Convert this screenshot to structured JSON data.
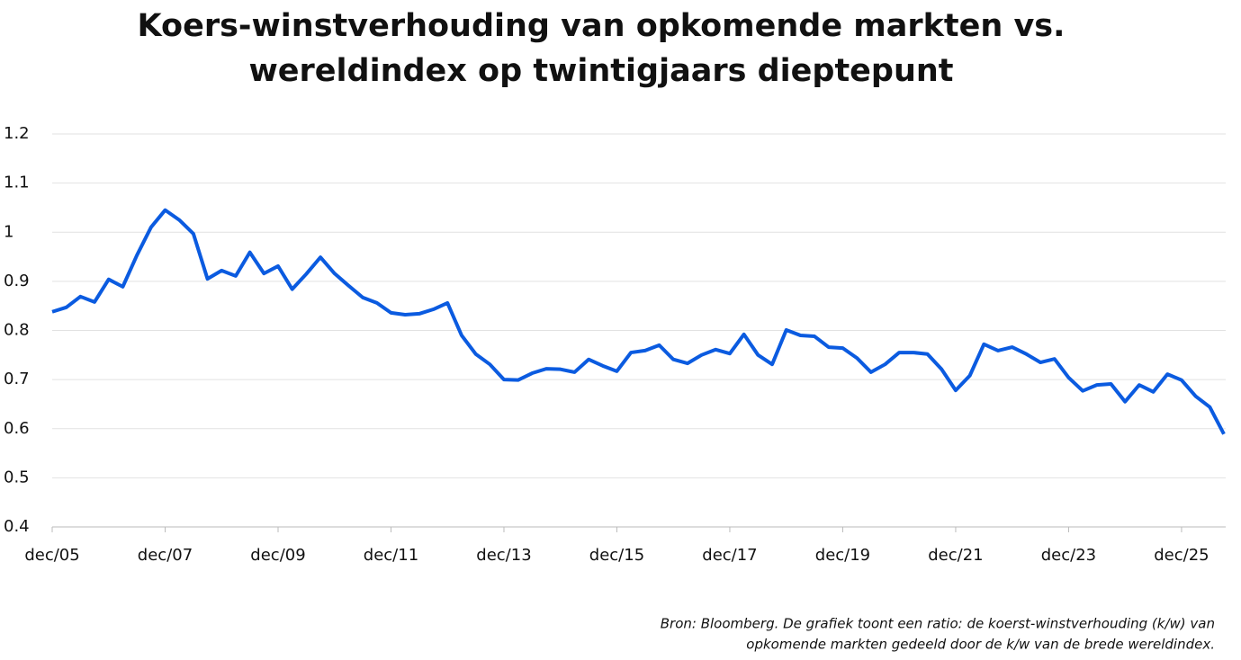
{
  "chart_data": {
    "type": "line",
    "title": [
      "Koers-winstverhouding van opkomende markten vs.",
      "wereldindex op twintigjaars dieptepunt"
    ],
    "source": [
      "Bron: Bloomberg. De grafiek toont een ratio: de koerst-winstverhouding (k/w) van",
      "opkomende markten gedeeld door de k/w van de brede wereldindex."
    ],
    "categories": [
      "dec/05",
      null,
      null,
      null,
      null,
      null,
      null,
      null,
      "dec/07",
      null,
      null,
      null,
      null,
      null,
      null,
      null,
      "dec/09",
      null,
      null,
      null,
      null,
      null,
      null,
      null,
      "dec/11",
      null,
      null,
      null,
      null,
      null,
      null,
      null,
      "dec/13",
      null,
      null,
      null,
      null,
      null,
      null,
      null,
      "dec/15",
      null,
      null,
      null,
      null,
      null,
      null,
      null,
      "dec/17",
      null,
      null,
      null,
      null,
      null,
      null,
      null,
      "dec/19",
      null,
      null,
      null,
      null,
      null,
      null,
      null,
      "dec/21",
      null,
      null,
      null,
      null,
      null,
      null,
      null,
      "dec/23",
      null,
      null,
      null,
      null,
      null,
      null,
      null,
      "dec/25",
      null,
      null,
      null
    ],
    "series": [
      {
        "color": "#0b5be0",
        "values": [
          0.838,
          0.847,
          0.869,
          0.858,
          0.904,
          0.889,
          0.953,
          1.01,
          1.045,
          1.025,
          0.997,
          0.905,
          0.922,
          0.911,
          0.959,
          0.916,
          0.931,
          0.884,
          0.915,
          0.949,
          0.916,
          0.891,
          0.867,
          0.856,
          0.836,
          0.832,
          0.834,
          0.843,
          0.856,
          0.79,
          0.752,
          0.731,
          0.7,
          0.699,
          0.713,
          0.722,
          0.721,
          0.715,
          0.741,
          0.728,
          0.717,
          0.755,
          0.759,
          0.77,
          0.741,
          0.733,
          0.75,
          0.761,
          0.753,
          0.792,
          0.75,
          0.731,
          0.801,
          0.79,
          0.788,
          0.766,
          0.764,
          0.744,
          0.715,
          0.731,
          0.755,
          0.755,
          0.752,
          0.721,
          0.678,
          0.708,
          0.772,
          0.759,
          0.766,
          0.752,
          0.735,
          0.742,
          0.704,
          0.677,
          0.689,
          0.691,
          0.655,
          0.689,
          0.675,
          0.711,
          0.699,
          0.666,
          0.644,
          0.589
        ]
      }
    ],
    "ylim": [
      0.4,
      1.2
    ],
    "yticks": [
      0.4,
      0.5,
      0.6,
      0.7,
      0.8,
      0.9,
      1,
      1.1,
      1.2
    ],
    "grid": true
  }
}
